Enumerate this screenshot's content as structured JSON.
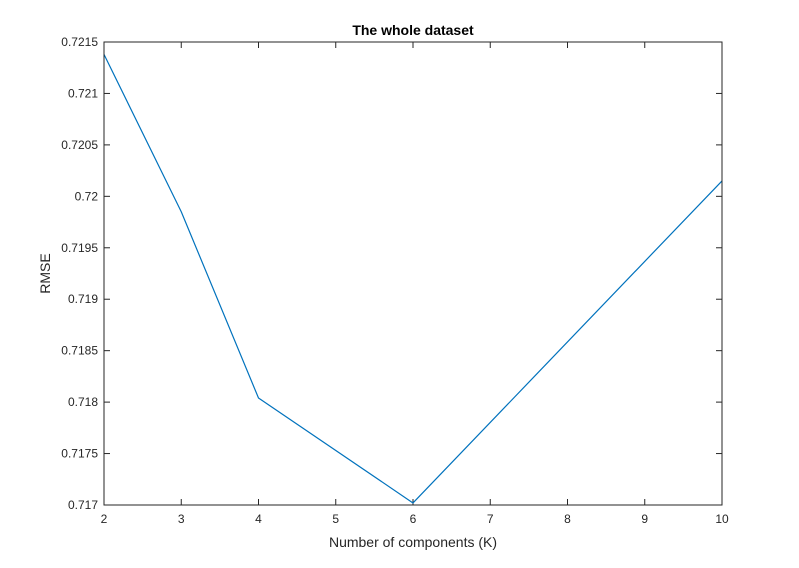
{
  "chart_data": {
    "type": "line",
    "title": "The whole dataset",
    "xlabel": "Number of components (K)",
    "ylabel": "RMSE",
    "xlim": [
      2,
      10
    ],
    "ylim": [
      0.717,
      0.7215
    ],
    "x_ticks": [
      2,
      3,
      4,
      5,
      6,
      7,
      8,
      9,
      10
    ],
    "y_ticks": [
      0.717,
      0.7175,
      0.718,
      0.7185,
      0.719,
      0.7195,
      0.72,
      0.7205,
      0.721,
      0.7215
    ],
    "x_tick_labels": [
      "2",
      "3",
      "4",
      "5",
      "6",
      "7",
      "8",
      "9",
      "10"
    ],
    "y_tick_labels": [
      "0.717",
      "0.7175",
      "0.718",
      "0.7185",
      "0.719",
      "0.7195",
      "0.72",
      "0.7205",
      "0.721",
      "0.7215"
    ],
    "grid": false,
    "box": true,
    "series": [
      {
        "color": "#0072BD",
        "x": [
          2,
          3,
          4,
          6,
          10
        ],
        "y": [
          0.72138,
          0.71985,
          0.71804,
          0.71702,
          0.72015
        ]
      }
    ]
  }
}
